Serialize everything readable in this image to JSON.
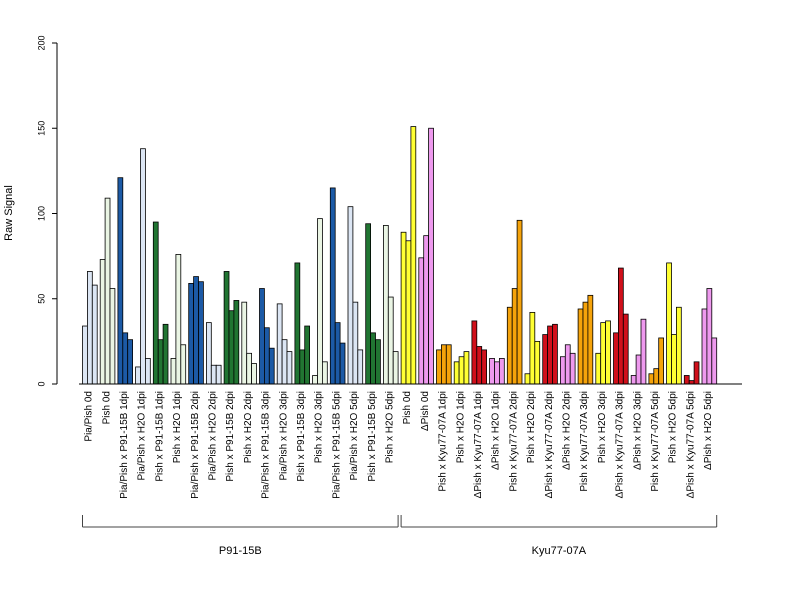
{
  "chart_data": {
    "type": "bar",
    "ylabel": "Raw Signal",
    "ylim": [
      0,
      200
    ],
    "yticks": [
      "0",
      "50",
      "100",
      "150",
      "200"
    ],
    "grid": false,
    "legend": "none",
    "categories": [
      "Pia/Pish 0d",
      "Pish 0d",
      "Pia/Pish x P91-15B 1dpi",
      "Pia/Pish x H2O 1dpi",
      "Pish x P91-15B 1dpi",
      "Pish x H2O 1dpi",
      "Pia/Pish x P91-15B 2dpi",
      "Pia/Pish x H2O 2dpi",
      "Pish x P91-15B 2dpi",
      "Pish x H2O 2dpi",
      "Pia/Pish x P91-15B 3dpi",
      "Pia/Pish x H2O 3dpi",
      "Pish x P91-15B 3dpi",
      "Pish x H2O 3dpi",
      "Pia/Pish x P91-15B 5dpi",
      "Pia/Pish x H2O 5dpi",
      "Pish x P91-15B 5dpi",
      "Pish x H2O 5dpi",
      "Pish 0d",
      "ΔPish 0d",
      "Pish x Kyu77-07A 1dpi",
      "Pish x H2O 1dpi",
      "ΔPish x Kyu77-07A 1dpi",
      "ΔPish x H2O 1dpi",
      "Pish x Kyu77-07A 2dpi",
      "Pish x H2O 2dpi",
      "ΔPish x Kyu77-07A 2dpi",
      "ΔPish x H2O 2dpi",
      "Pish x Kyu77-07A 3dpi",
      "Pish x H2O 3dpi",
      "ΔPish x Kyu77-07A 3dpi",
      "ΔPish x H2O 3dpi",
      "Pish x Kyu77-07A 5dpi",
      "Pish x H2O 5dpi",
      "ΔPish x Kyu77-07A 5dpi",
      "ΔPish x H2O 5dpi"
    ],
    "values": [
      [
        34,
        66,
        58
      ],
      [
        73,
        109,
        56
      ],
      [
        121,
        30,
        26
      ],
      [
        10,
        138,
        15
      ],
      [
        95,
        26,
        35
      ],
      [
        15,
        76,
        23
      ],
      [
        59,
        63,
        60
      ],
      [
        36,
        11,
        11
      ],
      [
        66,
        43,
        49
      ],
      [
        48,
        18,
        12
      ],
      [
        56,
        33,
        21
      ],
      [
        47,
        26,
        19
      ],
      [
        71,
        20,
        34
      ],
      [
        5,
        97,
        13
      ],
      [
        115,
        36,
        24
      ],
      [
        104,
        48,
        20
      ],
      [
        94,
        30,
        26
      ],
      [
        93,
        51,
        19
      ],
      [
        89,
        84,
        151
      ],
      [
        74,
        87,
        150
      ],
      [
        20,
        23,
        23
      ],
      [
        13,
        16,
        19
      ],
      [
        37,
        22,
        20
      ],
      [
        15,
        13,
        15
      ],
      [
        45,
        56,
        96
      ],
      [
        6,
        42,
        25
      ],
      [
        29,
        34,
        35
      ],
      [
        16,
        23,
        18
      ],
      [
        44,
        48,
        52
      ],
      [
        18,
        36,
        37
      ],
      [
        30,
        68,
        41
      ],
      [
        5,
        17,
        38
      ],
      [
        6,
        9,
        27
      ],
      [
        71,
        29,
        45
      ],
      [
        5,
        2,
        13
      ],
      [
        44,
        56,
        27
      ]
    ],
    "bar_colors": [
      "#dce6f4",
      "#eaf5e4",
      "#1c5aa6",
      "#dce6f4",
      "#217532",
      "#eaf5e4",
      "#1c5aa6",
      "#dce6f4",
      "#217532",
      "#eaf5e4",
      "#1c5aa6",
      "#dce6f4",
      "#217532",
      "#eaf5e4",
      "#1c5aa6",
      "#dce6f4",
      "#217532",
      "#eaf5e4",
      "#ffff33",
      "#ee99ee",
      "#f5a30b",
      "#ffff33",
      "#d0101b",
      "#ee99ee",
      "#f5a30b",
      "#ffff33",
      "#d0101b",
      "#ee99ee",
      "#f5a30b",
      "#ffff33",
      "#d0101b",
      "#ee99ee",
      "#f5a30b",
      "#ffff33",
      "#d0101b",
      "#ee99ee"
    ],
    "groups": [
      {
        "label": "P91-15B",
        "start": 0,
        "end": 17
      },
      {
        "label": "Kyu77-07A",
        "start": 18,
        "end": 35
      }
    ]
  }
}
